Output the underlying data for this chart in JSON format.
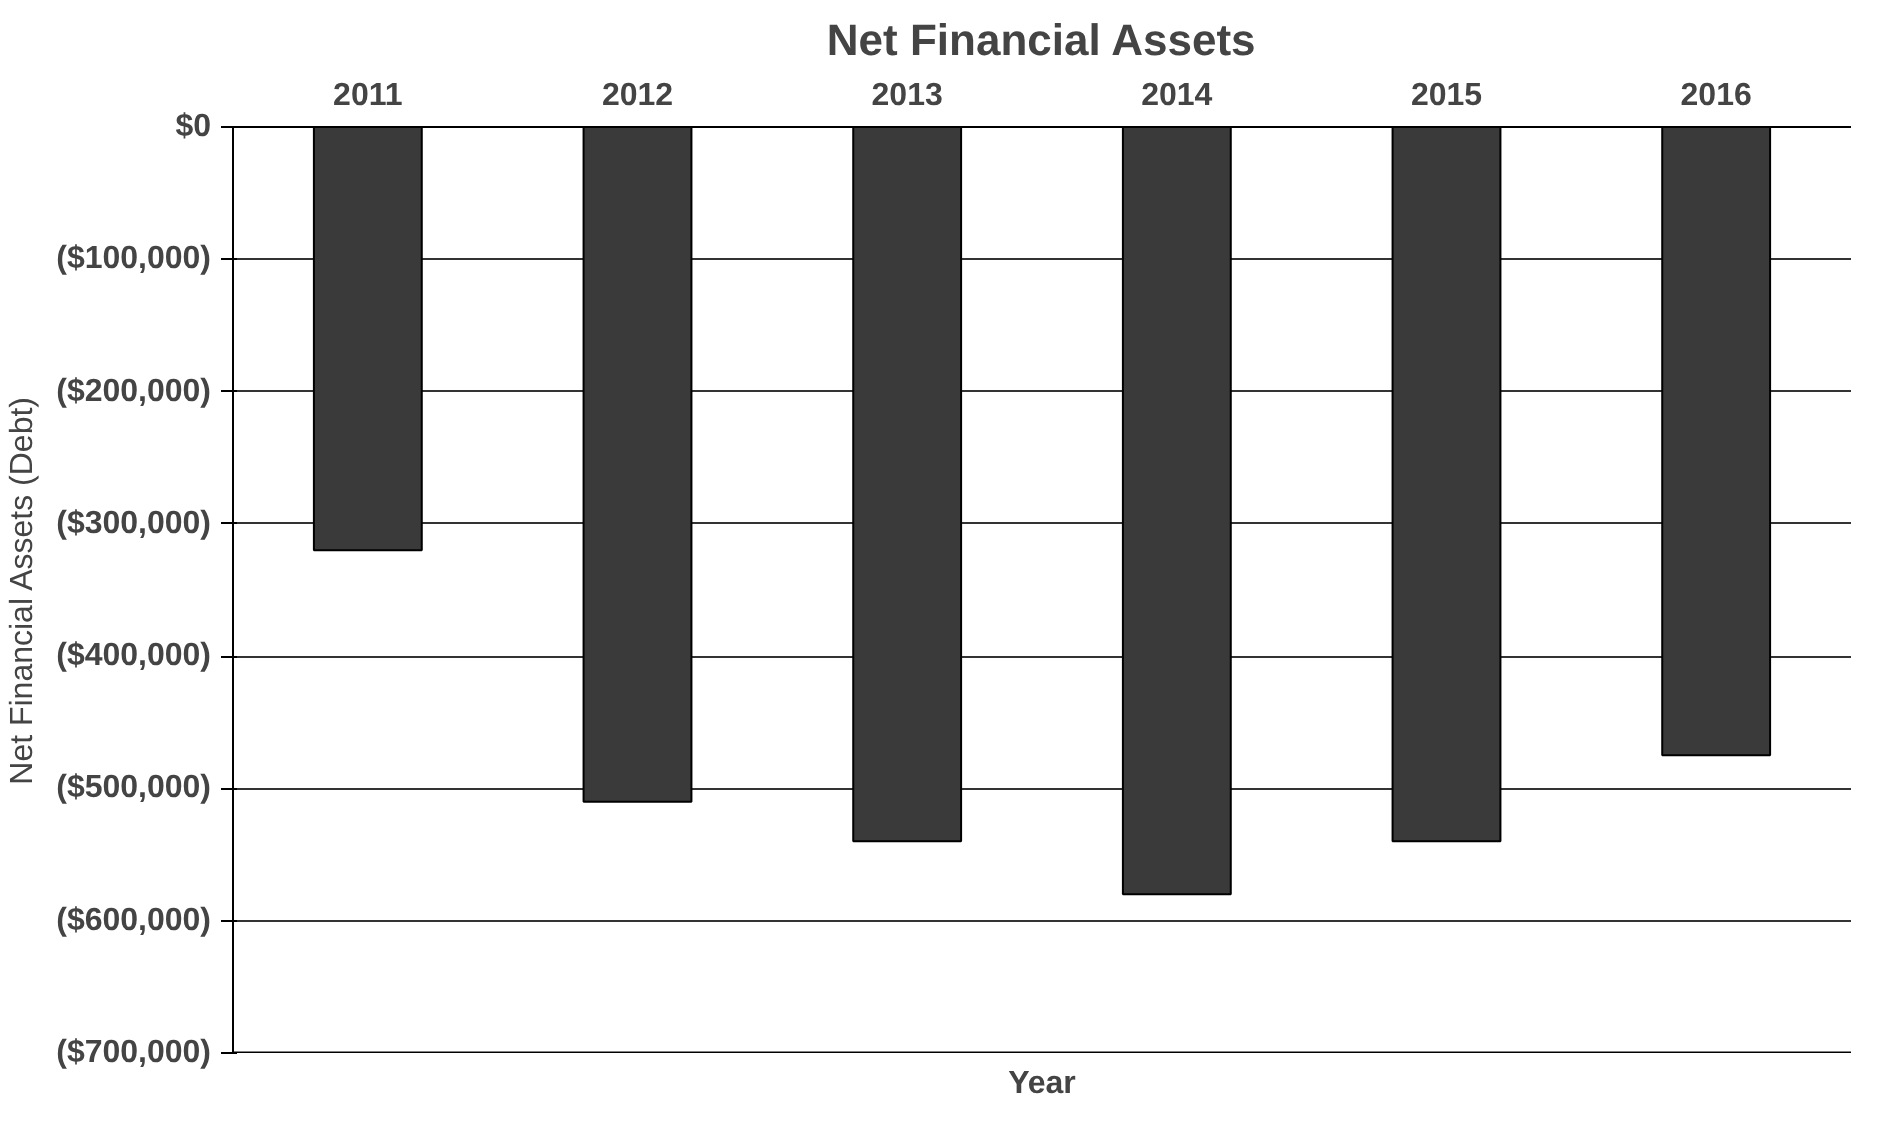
{
  "chart_data": {
    "type": "bar",
    "title": "Net Financial Assets",
    "xlabel": "Year",
    "ylabel": "Net Financial Assets (Debt)",
    "categories": [
      "2011",
      "2012",
      "2013",
      "2014",
      "2015",
      "2016"
    ],
    "values": [
      -320000,
      -510000,
      -540000,
      -580000,
      -540000,
      -475000
    ],
    "color": "#3a3a3a",
    "ylim": [
      -700000,
      0
    ],
    "yticks": [
      {
        "value": 0,
        "label": "$0"
      },
      {
        "value": -100000,
        "label": "($100,000)"
      },
      {
        "value": -200000,
        "label": "($200,000)"
      },
      {
        "value": -300000,
        "label": "($300,000)"
      },
      {
        "value": -400000,
        "label": "($400,000)"
      },
      {
        "value": -500000,
        "label": "($500,000)"
      },
      {
        "value": -600000,
        "label": "($600,000)"
      },
      {
        "value": -700000,
        "label": "($700,000)"
      }
    ],
    "grid": "y"
  }
}
